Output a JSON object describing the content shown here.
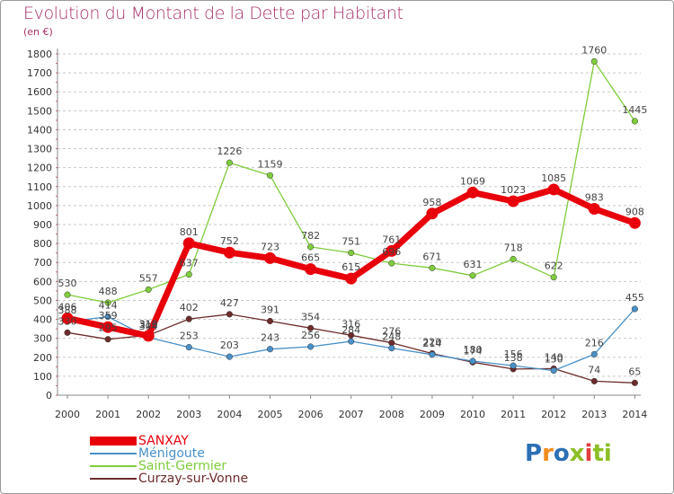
{
  "title": "Evolution du Montant de la Dette par Habitant",
  "subtitle": "(en €)",
  "logo": {
    "text": "Proxiti",
    "letter_colors": [
      "#2b6fb5",
      "#f28c1c",
      "#2b6fb5",
      "#8cbf26",
      "#e33d3d",
      "#8cbf26",
      "#8cbf26"
    ]
  },
  "chart_data": {
    "type": "line",
    "x": [
      2000,
      2001,
      2002,
      2003,
      2004,
      2005,
      2006,
      2007,
      2008,
      2009,
      2010,
      2011,
      2012,
      2013,
      2014
    ],
    "ylim": [
      0,
      1800
    ],
    "yticks": [
      0,
      100,
      200,
      300,
      400,
      500,
      600,
      700,
      800,
      900,
      1000,
      1100,
      1200,
      1300,
      1400,
      1500,
      1600,
      1700,
      1800
    ],
    "grid": "horizontal dashed",
    "legend_position": "bottom-left",
    "series": [
      {
        "name": "Curzay-sur-Vonne",
        "color": "#6e2b2b",
        "values": [
          330,
          295,
          316,
          402,
          427,
          391,
          354,
          316,
          276,
          220,
          174,
          138,
          140,
          74,
          65
        ]
      },
      {
        "name": "Ménigoute",
        "color": "#4a90c8",
        "values": [
          388,
          414,
          304,
          253,
          203,
          243,
          256,
          284,
          248,
          214,
          180,
          156,
          130,
          216,
          455
        ]
      },
      {
        "name": "Saint-Germier",
        "color": "#7fcc3c",
        "values": [
          530,
          488,
          557,
          637,
          1226,
          1159,
          782,
          751,
          696,
          671,
          631,
          718,
          622,
          1760,
          1445
        ]
      },
      {
        "name": "SANXAY",
        "color": "#e8000b",
        "values": [
          406,
          359,
          313,
          801,
          752,
          723,
          665,
          615,
          761,
          958,
          1069,
          1023,
          1085,
          983,
          908
        ]
      }
    ]
  }
}
